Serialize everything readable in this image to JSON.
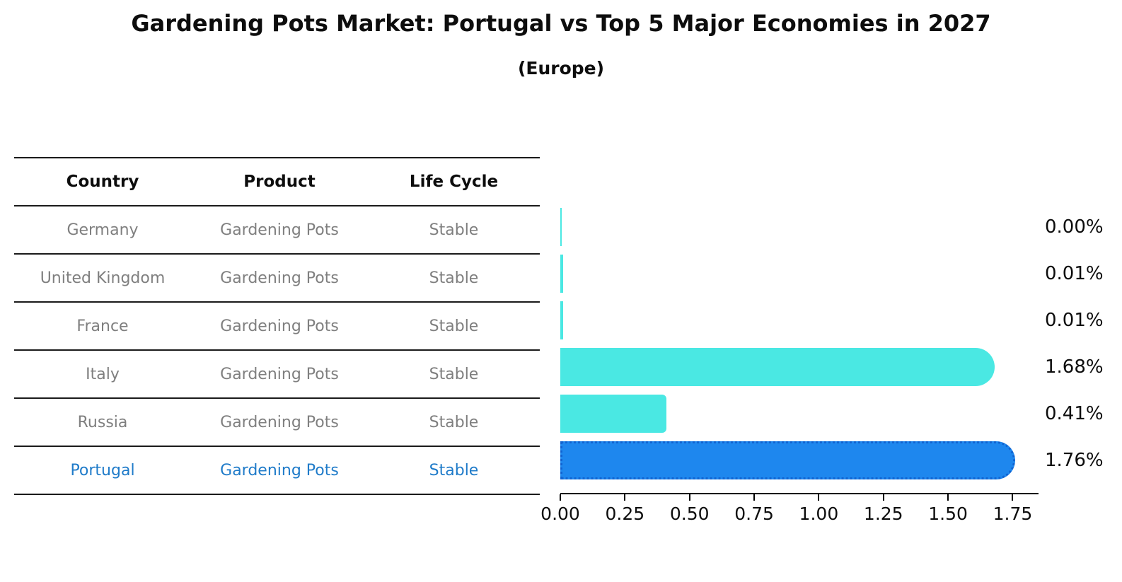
{
  "title": "Gardening Pots Market: Portugal vs Top 5 Major Economies in 2027",
  "subtitle": "(Europe)",
  "table": {
    "headers": [
      "Country",
      "Product",
      "Life Cycle"
    ],
    "rows": [
      {
        "country": "Germany",
        "product": "Gardening Pots",
        "life_cycle": "Stable",
        "highlight": false
      },
      {
        "country": "United Kingdom",
        "product": "Gardening Pots",
        "life_cycle": "Stable",
        "highlight": false
      },
      {
        "country": "France",
        "product": "Gardening Pots",
        "life_cycle": "Stable",
        "highlight": false
      },
      {
        "country": "Italy",
        "product": "Gardening Pots",
        "life_cycle": "Stable",
        "highlight": false
      },
      {
        "country": "Russia",
        "product": "Gardening Pots",
        "life_cycle": "Stable",
        "highlight": false
      },
      {
        "country": "Portugal",
        "product": "Gardening Pots",
        "life_cycle": "Stable",
        "highlight": true
      }
    ]
  },
  "chart_data": {
    "type": "bar",
    "orientation": "horizontal",
    "title": "Gardening Pots Market: Portugal vs Top 5 Major Economies in 2027",
    "subtitle": "(Europe)",
    "categories": [
      "Germany",
      "United Kingdom",
      "France",
      "Italy",
      "Russia",
      "Portugal"
    ],
    "values": [
      0.0,
      0.01,
      0.01,
      1.68,
      0.41,
      1.76
    ],
    "value_labels": [
      "0.00%",
      "0.01%",
      "0.01%",
      "1.68%",
      "0.41%",
      "1.76%"
    ],
    "x_tick_labels": [
      "0.00",
      "0.25",
      "0.50",
      "0.75",
      "1.00",
      "1.25",
      "1.50",
      "1.75"
    ],
    "xlim": [
      0,
      1.85
    ],
    "xlabel": "",
    "ylabel": "",
    "grid": false,
    "legend": "none",
    "highlight_index": 5,
    "bar_color": "#4AE8E3",
    "highlight_bar_color": "#1E87EE",
    "highlight_bar_border_color": "#1064d2",
    "highlight_text_color": "#1f7bc9",
    "table_text_color": "#7f7f7f"
  }
}
